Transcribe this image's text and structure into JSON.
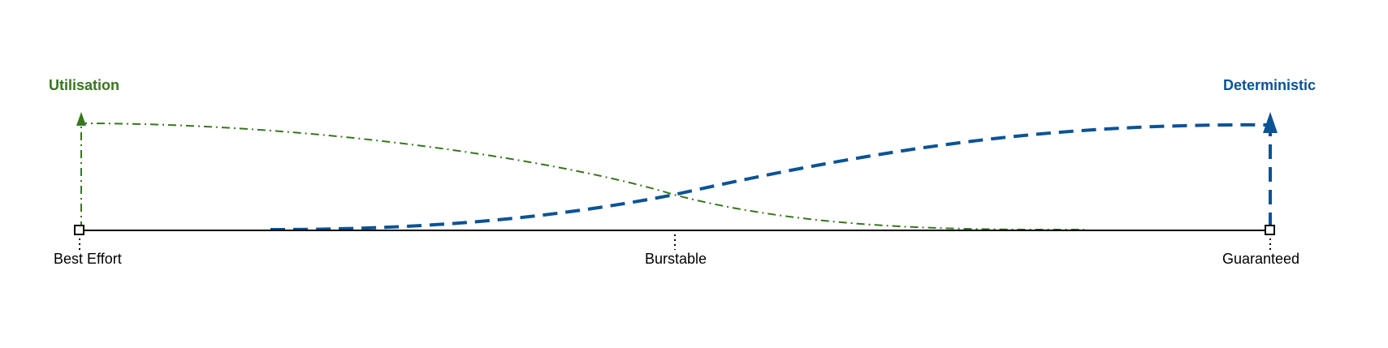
{
  "diagram": {
    "axis": {
      "points": [
        {
          "label": "Best Effort"
        },
        {
          "label": "Burstable"
        },
        {
          "label": "Guaranteed"
        }
      ]
    },
    "series": [
      {
        "name": "Utilisation",
        "color": "#38761d",
        "line_style": "dash-dot"
      },
      {
        "name": "Deterministic",
        "color": "#0b5394",
        "line_style": "dashed"
      }
    ]
  }
}
